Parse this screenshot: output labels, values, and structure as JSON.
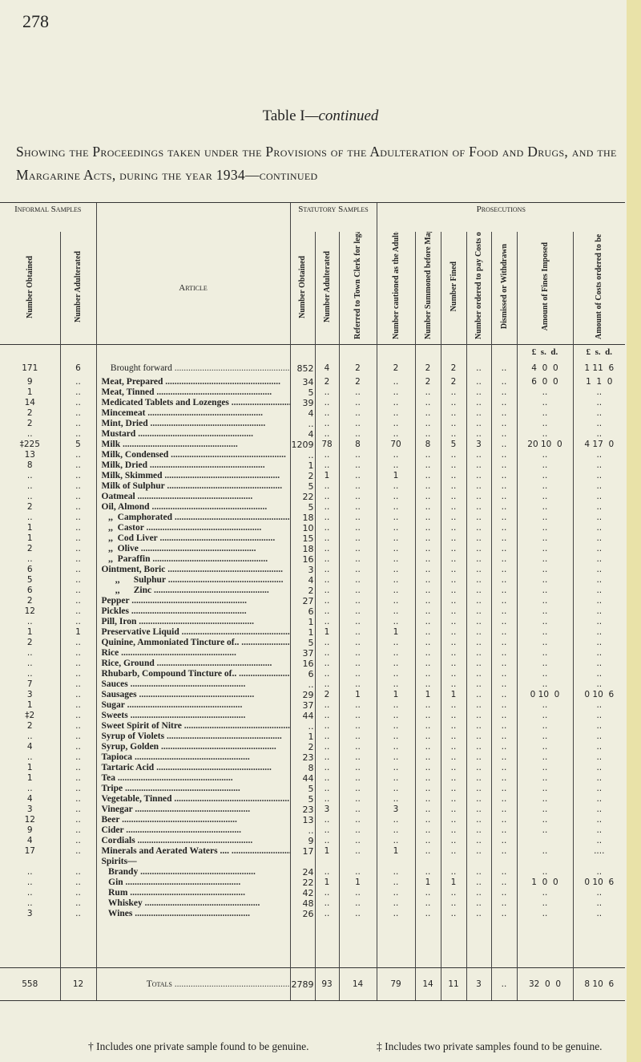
{
  "page_number": "278",
  "table_title": "Table I",
  "table_title_suffix": "—continued",
  "subtitle": "Showing the Proceedings taken under the Provisions of the Adulteration of Food and Drugs, and the Margarine Acts, during the year 1934—continued",
  "group_headers": {
    "informal": "Informal Samples",
    "statutory": "Statutory Samples",
    "prosecutions": "Prosecutions"
  },
  "columns": [
    "Number Obtained",
    "Number Adulterated",
    "Article",
    "Number Obtained",
    "Number Adulterated",
    "Referred to Town Clerk for legal proceedings",
    "Number cautioned as the Adulteration was only slight",
    "Number Summoned before Magistrates",
    "Number Fined",
    "Number ordered to pay Costs only",
    "Dismissed or Withdrawn",
    "Amount of Fines Imposed",
    "Amount of Costs ordered to be paid"
  ],
  "currency_units": {
    "fines": "£  s.  d.",
    "costs": "£  s.  d."
  },
  "brought_forward": [
    "171",
    "6",
    "Brought forward",
    "852",
    "4",
    "2",
    "2",
    "2",
    "2",
    "..",
    "..",
    "4  0  0",
    "1 11  6"
  ],
  "rows": [
    [
      "9",
      "..",
      "Meat, Prepared",
      "34",
      "2",
      "2",
      "..",
      "2",
      "2",
      "..",
      "..",
      "6  0  0",
      "1  1  0"
    ],
    [
      "1",
      "..",
      "Meat, Tinned",
      "5",
      "..",
      "..",
      "..",
      "..",
      "..",
      "..",
      "..",
      "..",
      ".."
    ],
    [
      "14",
      "..",
      "Medicated Tablets and Lozenges",
      "39",
      "..",
      "..",
      "..",
      "..",
      "..",
      "..",
      "..",
      "..",
      ".."
    ],
    [
      "2",
      "..",
      "Mincemeat",
      "4",
      "..",
      "..",
      "..",
      "..",
      "..",
      "..",
      "..",
      "..",
      ".."
    ],
    [
      "2",
      "..",
      "Mint, Dried",
      "..",
      "..",
      "..",
      "..",
      "..",
      "..",
      "..",
      "..",
      "..",
      ".."
    ],
    [
      "..",
      "..",
      "Mustard",
      "4",
      "..",
      "..",
      "..",
      "..",
      "..",
      "..",
      "..",
      "..",
      ".."
    ],
    [
      "‡225",
      "5",
      "Milk",
      "1209",
      "78",
      "8",
      "70",
      "8",
      "5",
      "3",
      "..",
      "20 10  0",
      "4 17  0"
    ],
    [
      "13",
      "..",
      "Milk, Condensed",
      "..",
      "..",
      "..",
      "..",
      "..",
      "..",
      "..",
      "..",
      "..",
      ".."
    ],
    [
      "8",
      "..",
      "Milk, Dried",
      "1",
      "..",
      "..",
      "..",
      "..",
      "..",
      "..",
      "..",
      "..",
      ".."
    ],
    [
      "..",
      "..",
      "Milk, Skimmed",
      "2",
      "1",
      "..",
      "1",
      "..",
      "..",
      "..",
      "..",
      "..",
      ".."
    ],
    [
      "..",
      "..",
      "Milk of Sulphur",
      "5",
      "..",
      "..",
      "..",
      "..",
      "..",
      "..",
      "..",
      "..",
      ".."
    ],
    [
      "..",
      "..",
      "Oatmeal",
      "22",
      "..",
      "..",
      "..",
      "..",
      "..",
      "..",
      "..",
      "..",
      ".."
    ],
    [
      "2",
      "..",
      "Oil, Almond",
      "5",
      "..",
      "..",
      "..",
      "..",
      "..",
      "..",
      "..",
      "..",
      ".."
    ],
    [
      "..",
      "..",
      "   ,,  Camphorated",
      "18",
      "..",
      "..",
      "..",
      "..",
      "..",
      "..",
      "..",
      "..",
      ".."
    ],
    [
      "1",
      "..",
      "   ,,  Castor",
      "10",
      "..",
      "..",
      "..",
      "..",
      "..",
      "..",
      "..",
      "..",
      ".."
    ],
    [
      "1",
      "..",
      "   ,,  Cod Liver",
      "15",
      "..",
      "..",
      "..",
      "..",
      "..",
      "..",
      "..",
      "..",
      ".."
    ],
    [
      "2",
      "..",
      "   ,,  Olive",
      "18",
      "..",
      "..",
      "..",
      "..",
      "..",
      "..",
      "..",
      "..",
      ".."
    ],
    [
      "..",
      "..",
      "   ,,  Paraffin",
      "16",
      "..",
      "..",
      "..",
      "..",
      "..",
      "..",
      "..",
      "..",
      ".."
    ],
    [
      "6",
      "..",
      "Ointment, Boric",
      "3",
      "..",
      "..",
      "..",
      "..",
      "..",
      "..",
      "..",
      "..",
      ".."
    ],
    [
      "5",
      "..",
      "      ,,      Sulphur",
      "4",
      "..",
      "..",
      "..",
      "..",
      "..",
      "..",
      "..",
      "..",
      ".."
    ],
    [
      "6",
      "..",
      "      ,,      Zinc",
      "2",
      "..",
      "..",
      "..",
      "..",
      "..",
      "..",
      "..",
      "..",
      ".."
    ],
    [
      "2",
      "..",
      "Pepper",
      "27",
      "..",
      "..",
      "..",
      "..",
      "..",
      "..",
      "..",
      "..",
      ".."
    ],
    [
      "12",
      "..",
      "Pickles",
      "6",
      "..",
      "..",
      "..",
      "..",
      "..",
      "..",
      "..",
      "..",
      ".."
    ],
    [
      "..",
      "..",
      "Pill, Iron",
      "1",
      "..",
      "..",
      "..",
      "..",
      "..",
      "..",
      "..",
      "..",
      ".."
    ],
    [
      "1",
      "1",
      "Preservative Liquid",
      "1",
      "1",
      "..",
      "1",
      "..",
      "..",
      "..",
      "..",
      "..",
      ".."
    ],
    [
      "2",
      "..",
      "Quinine, Ammoniated Tincture of..",
      "5",
      "..",
      "..",
      "..",
      "..",
      "..",
      "..",
      "..",
      "..",
      ".."
    ],
    [
      "..",
      "..",
      "Rice",
      "37",
      "..",
      "..",
      "..",
      "..",
      "..",
      "..",
      "..",
      "..",
      ".."
    ],
    [
      "..",
      "..",
      "Rice, Ground",
      "16",
      "..",
      "..",
      "..",
      "..",
      "..",
      "..",
      "..",
      "..",
      ".."
    ],
    [
      "..",
      "..",
      "Rhubarb, Compound Tincture of..",
      "6",
      "..",
      "..",
      "..",
      "..",
      "..",
      "..",
      "..",
      "..",
      ".."
    ],
    [
      "7",
      "..",
      "Sauces",
      "..",
      "..",
      "..",
      "..",
      "..",
      "..",
      "..",
      "..",
      "..",
      ".."
    ],
    [
      "3",
      "..",
      "Sausages",
      "29",
      "2",
      "1",
      "1",
      "1",
      "1",
      "..",
      "..",
      "0 10  0",
      "0 10  6"
    ],
    [
      "1",
      "..",
      "Sugar",
      "37",
      "..",
      "..",
      "..",
      "..",
      "..",
      "..",
      "..",
      "..",
      ".."
    ],
    [
      "‡2",
      "..",
      "Sweets",
      "44",
      "..",
      "..",
      "..",
      "..",
      "..",
      "..",
      "..",
      "..",
      ".."
    ],
    [
      "2",
      "..",
      "Sweet Spirit of Nitre",
      "..",
      "..",
      "..",
      "..",
      "..",
      "..",
      "..",
      "..",
      "..",
      ".."
    ],
    [
      "..",
      "..",
      "Syrup of Violets",
      "1",
      "..",
      "..",
      "..",
      "..",
      "..",
      "..",
      "..",
      "..",
      ".."
    ],
    [
      "4",
      "..",
      "Syrup, Golden",
      "2",
      "..",
      "..",
      "..",
      "..",
      "..",
      "..",
      "..",
      "..",
      ".."
    ],
    [
      "..",
      "..",
      "Tapioca",
      "23",
      "..",
      "..",
      "..",
      "..",
      "..",
      "..",
      "..",
      "..",
      ".."
    ],
    [
      "1",
      "..",
      "Tartaric Acid",
      "8",
      "..",
      "..",
      "..",
      "..",
      "..",
      "..",
      "..",
      "..",
      ".."
    ],
    [
      "1",
      "..",
      "Tea",
      "44",
      "..",
      "..",
      "..",
      "..",
      "..",
      "..",
      "..",
      "..",
      ".."
    ],
    [
      "..",
      "..",
      "Tripe",
      "5",
      "..",
      "..",
      "..",
      "..",
      "..",
      "..",
      "..",
      "..",
      ".."
    ],
    [
      "4",
      "..",
      "Vegetable, Tinned",
      "5",
      "..",
      "..",
      "..",
      "..",
      "..",
      "..",
      "..",
      "..",
      ".."
    ],
    [
      "3",
      "..",
      "Vinegar",
      "23",
      "3",
      "..",
      "3",
      "..",
      "..",
      "..",
      "..",
      "..",
      ".."
    ],
    [
      "12",
      "..",
      "Beer",
      "13",
      "..",
      "..",
      "..",
      "..",
      "..",
      "..",
      "..",
      "..",
      ".."
    ],
    [
      "9",
      "..",
      "Cider",
      "..",
      "..",
      "..",
      "..",
      "..",
      "..",
      "..",
      "..",
      "..",
      ".."
    ],
    [
      "4",
      "..",
      "Cordials",
      "9",
      "..",
      "..",
      "..",
      "..",
      "..",
      "..",
      "..",
      "",
      ".."
    ],
    [
      "17",
      "..",
      "Minerals and Aerated Waters ....",
      "17",
      "1",
      "..",
      "1",
      "..",
      "..",
      "..",
      "..",
      "..",
      "...."
    ],
    [
      "",
      "",
      "Spirits—",
      "",
      "",
      "",
      "",
      "",
      "",
      "",
      "",
      "",
      ""
    ],
    [
      "..",
      "..",
      "   Brandy",
      "24",
      "..",
      "..",
      "..",
      "..",
      "..",
      "..",
      "..",
      "..",
      ".."
    ],
    [
      "..",
      "..",
      "   Gin",
      "22",
      "1",
      "1",
      "..",
      "1",
      "1",
      "..",
      "..",
      "1  0  0",
      "0 10  6"
    ],
    [
      "..",
      "..",
      "   Rum",
      "42",
      "..",
      "..",
      "..",
      "..",
      "..",
      "..",
      "..",
      "..",
      ".."
    ],
    [
      "..",
      "..",
      "   Whiskey",
      "48",
      "..",
      "..",
      "..",
      "..",
      "..",
      "..",
      "..",
      "..",
      ".."
    ],
    [
      "3",
      "..",
      "   Wines",
      "26",
      "..",
      "..",
      "..",
      "..",
      "..",
      "..",
      "..",
      "..",
      ".."
    ]
  ],
  "totals": [
    "558",
    "12",
    "Totals",
    "2789",
    "93",
    "14",
    "79",
    "14",
    "11",
    "3",
    "..",
    "32  0  0",
    "8 10  6"
  ],
  "footnotes": [
    "† Includes one private sample found to be genuine.",
    "‡ Includes two private samples found to be genuine."
  ]
}
